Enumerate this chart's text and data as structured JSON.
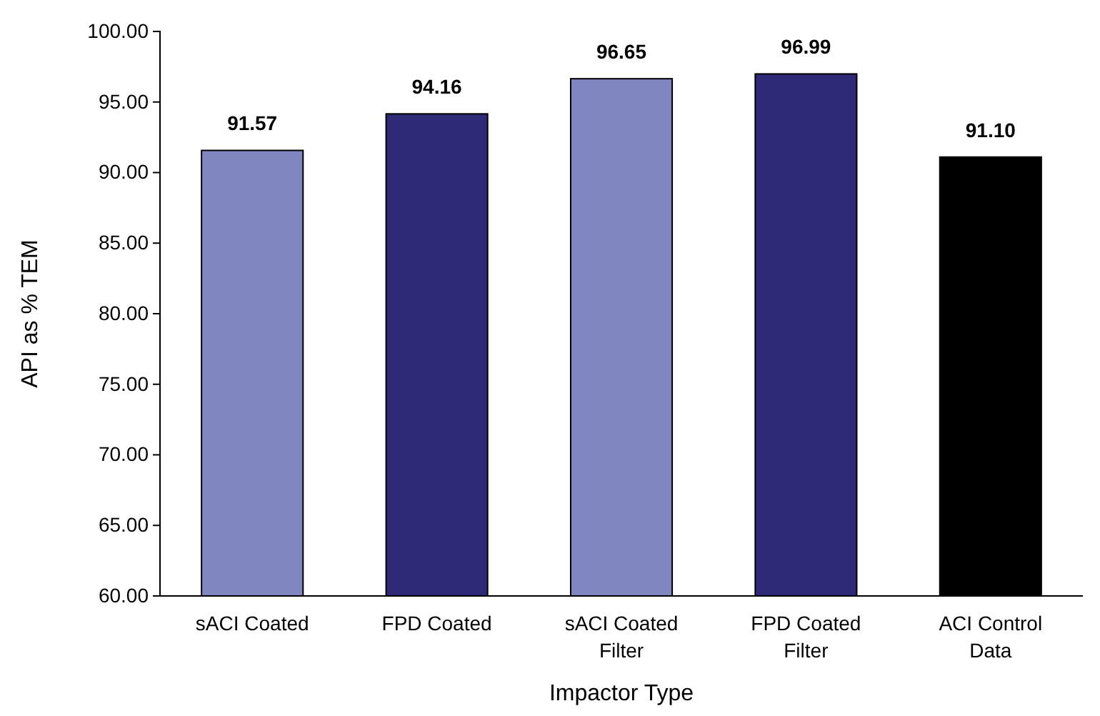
{
  "chart_data": {
    "type": "bar",
    "xlabel": "Impactor Type",
    "ylabel": "API as % TEM",
    "categories": [
      "sACI Coated",
      "FPD Coated",
      "sACI Coated Filter",
      "FPD Coated Filter",
      "ACI Control Data"
    ],
    "values": [
      91.57,
      94.16,
      96.65,
      96.99,
      91.1
    ],
    "colors": [
      "#7f86c0",
      "#2e2a78",
      "#7f86c0",
      "#2e2a78",
      "#000000"
    ],
    "value_labels": [
      "91.57",
      "94.16",
      "96.65",
      "96.99",
      "91.10"
    ],
    "ylim": [
      60,
      100
    ],
    "yticks": [
      {
        "value": 60,
        "label": "60.00"
      },
      {
        "value": 65,
        "label": "65.00"
      },
      {
        "value": 70,
        "label": "70.00"
      },
      {
        "value": 75,
        "label": "75.00"
      },
      {
        "value": 80,
        "label": "80.00"
      },
      {
        "value": 85,
        "label": "85.00"
      },
      {
        "value": 90,
        "label": "90.00"
      },
      {
        "value": 95,
        "label": "95.00"
      },
      {
        "value": 100,
        "label": "100.00"
      }
    ],
    "grid": false
  }
}
